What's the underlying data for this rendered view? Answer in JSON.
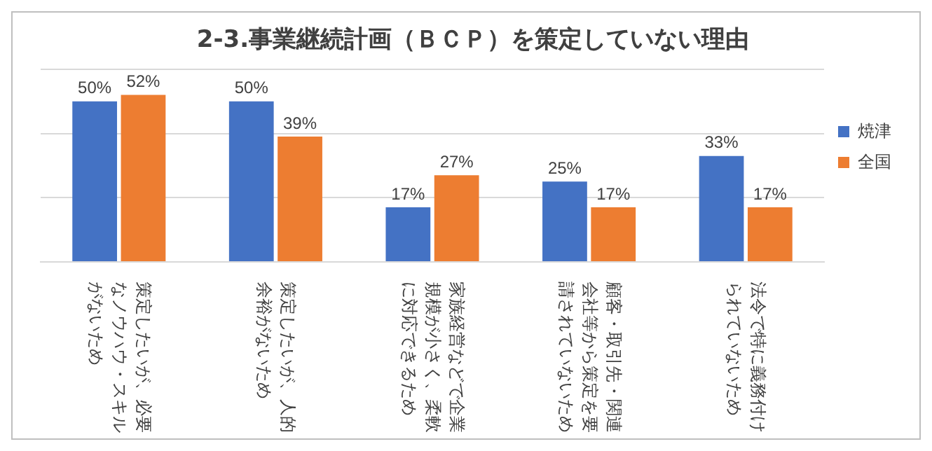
{
  "chart_data": {
    "type": "bar",
    "title": "2-3.事業継続計画（ＢＣＰ）を策定していない理由",
    "categories": [
      "策定したいが、必要なノウハウ・スキルがないため",
      "策定したいが、人的余裕がないため",
      "家族経営などで企業規模が小さく、柔軟に対応できるため",
      "顧客・取引先・関連会社等から策定を要請されていないため",
      "法令で特に義務付けられていないため"
    ],
    "series": [
      {
        "name": "焼津",
        "color": "#4472c4",
        "values": [
          50,
          50,
          17,
          25,
          33
        ],
        "value_labels": [
          "50%",
          "50%",
          "17%",
          "25%",
          "33%"
        ]
      },
      {
        "name": "全国",
        "color": "#ed7d31",
        "values": [
          52,
          39,
          27,
          17,
          17
        ],
        "value_labels": [
          "52%",
          "39%",
          "27%",
          "17%",
          "17%"
        ]
      }
    ],
    "ylim": [
      0,
      60
    ],
    "yticks": [
      0,
      20,
      40,
      60
    ],
    "grid": "y",
    "legend": "right",
    "tick_labels": "x"
  }
}
